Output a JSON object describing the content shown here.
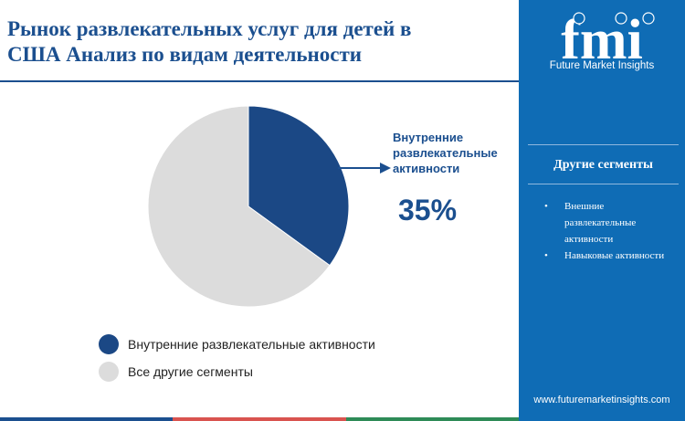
{
  "header": {
    "title_line1": "Рынок развлекательных услуг для детей в",
    "title_line2": "США Анализ  по видам деятельности"
  },
  "brand": {
    "logo_text": "fmi",
    "logo_subtitle": "Future Market Insights",
    "website": "www.futuremarketinsights.com",
    "sidebar_color": "#0f6cb5"
  },
  "sidebar": {
    "title": "Другие сегменты",
    "items": [
      {
        "label": "Внешние развлекательные активности"
      },
      {
        "label": "Навыковые активности"
      }
    ]
  },
  "callout": {
    "label": "Внутренние развлекательные активности",
    "value": "35%"
  },
  "footer_colors": [
    "#1b4f8f",
    "#d9534f",
    "#2e8b57"
  ],
  "chart_data": {
    "type": "pie",
    "title": "Рынок развлекательных услуг для детей в США Анализ  по видам деятельности",
    "slices": [
      {
        "label": "Внутренние развлекательные активности",
        "value": 35,
        "color": "#1b4885"
      },
      {
        "label": "Все другие сегменты",
        "value": 65,
        "color": "#dcdcdc"
      }
    ],
    "legend_position": "bottom-left"
  }
}
